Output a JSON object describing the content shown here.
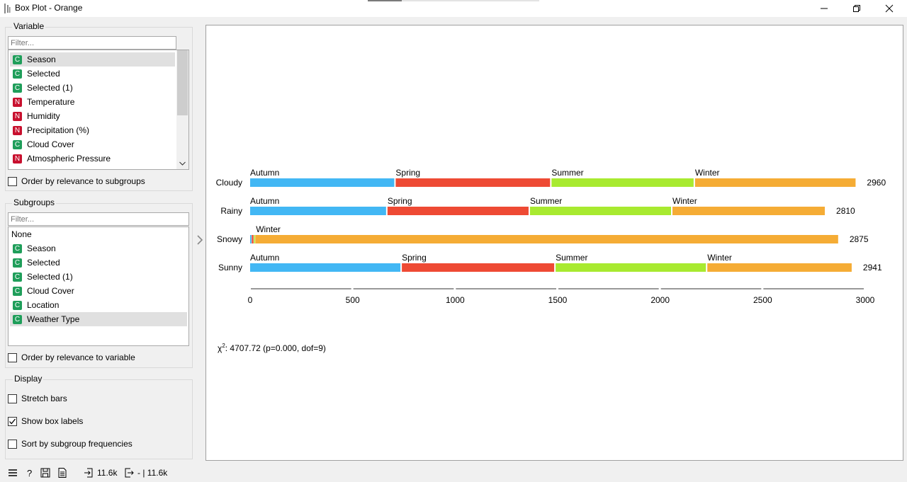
{
  "window": {
    "title": "Box Plot - Orange"
  },
  "variable_group": {
    "title": "Variable",
    "filter_placeholder": "Filter...",
    "items": [
      {
        "type": "C",
        "label": "Season",
        "selected": true
      },
      {
        "type": "C",
        "label": "Selected"
      },
      {
        "type": "C",
        "label": "Selected (1)"
      },
      {
        "type": "N",
        "label": "Temperature"
      },
      {
        "type": "N",
        "label": "Humidity"
      },
      {
        "type": "N",
        "label": "Precipitation (%)"
      },
      {
        "type": "C",
        "label": "Cloud Cover"
      },
      {
        "type": "N",
        "label": "Atmospheric Pressure"
      }
    ],
    "order_checkbox": {
      "label": "Order by relevance to subgroups",
      "checked": false
    }
  },
  "subgroups_group": {
    "title": "Subgroups",
    "filter_placeholder": "Filter...",
    "none_label": "None",
    "items": [
      {
        "type": "C",
        "label": "Season"
      },
      {
        "type": "C",
        "label": "Selected"
      },
      {
        "type": "C",
        "label": "Selected (1)"
      },
      {
        "type": "C",
        "label": "Cloud Cover"
      },
      {
        "type": "C",
        "label": "Location"
      },
      {
        "type": "C",
        "label": "Weather Type",
        "selected": true
      }
    ],
    "order_checkbox": {
      "label": "Order by relevance to variable",
      "checked": false
    }
  },
  "display_group": {
    "title": "Display",
    "stretch_bars": {
      "label": "Stretch bars",
      "checked": false
    },
    "show_box_labels": {
      "label": "Show box labels",
      "checked": true
    },
    "sort_by_freq": {
      "label": "Sort by subgroup frequencies",
      "checked": false
    }
  },
  "colors": {
    "Autumn": "#42b7f4",
    "Spring": "#ee4a34",
    "Summer": "#a8ea30",
    "Winter": "#f5ac35",
    "badge_c": "#1f9e5a",
    "badge_n": "#c8102e"
  },
  "chart_data": {
    "type": "bar",
    "stacked": true,
    "orientation": "horizontal",
    "categories": [
      "Cloudy",
      "Rainy",
      "Snowy",
      "Sunny"
    ],
    "segments_order": [
      "Autumn",
      "Spring",
      "Summer",
      "Winter"
    ],
    "series": [
      {
        "name": "Autumn",
        "values": [
          710,
          670,
          8,
          740
        ]
      },
      {
        "name": "Spring",
        "values": [
          760,
          695,
          10,
          750
        ]
      },
      {
        "name": "Summer",
        "values": [
          700,
          695,
          7,
          740
        ]
      },
      {
        "name": "Winter",
        "values": [
          790,
          750,
          2850,
          711
        ]
      }
    ],
    "totals": [
      "2960",
      "2810",
      "2875",
      "2941"
    ],
    "xlim": [
      0,
      3000
    ],
    "xticks": [
      "0",
      "500",
      "1000",
      "1500",
      "2000",
      "2500",
      "3000"
    ],
    "stat_text_prefix": "χ",
    "stat_text_sup": "2",
    "stat_text": ": 4707.72 (p=0.000, dof=9)"
  },
  "status": {
    "input_count": "11.6k",
    "output_text": "- | 11.6k"
  }
}
